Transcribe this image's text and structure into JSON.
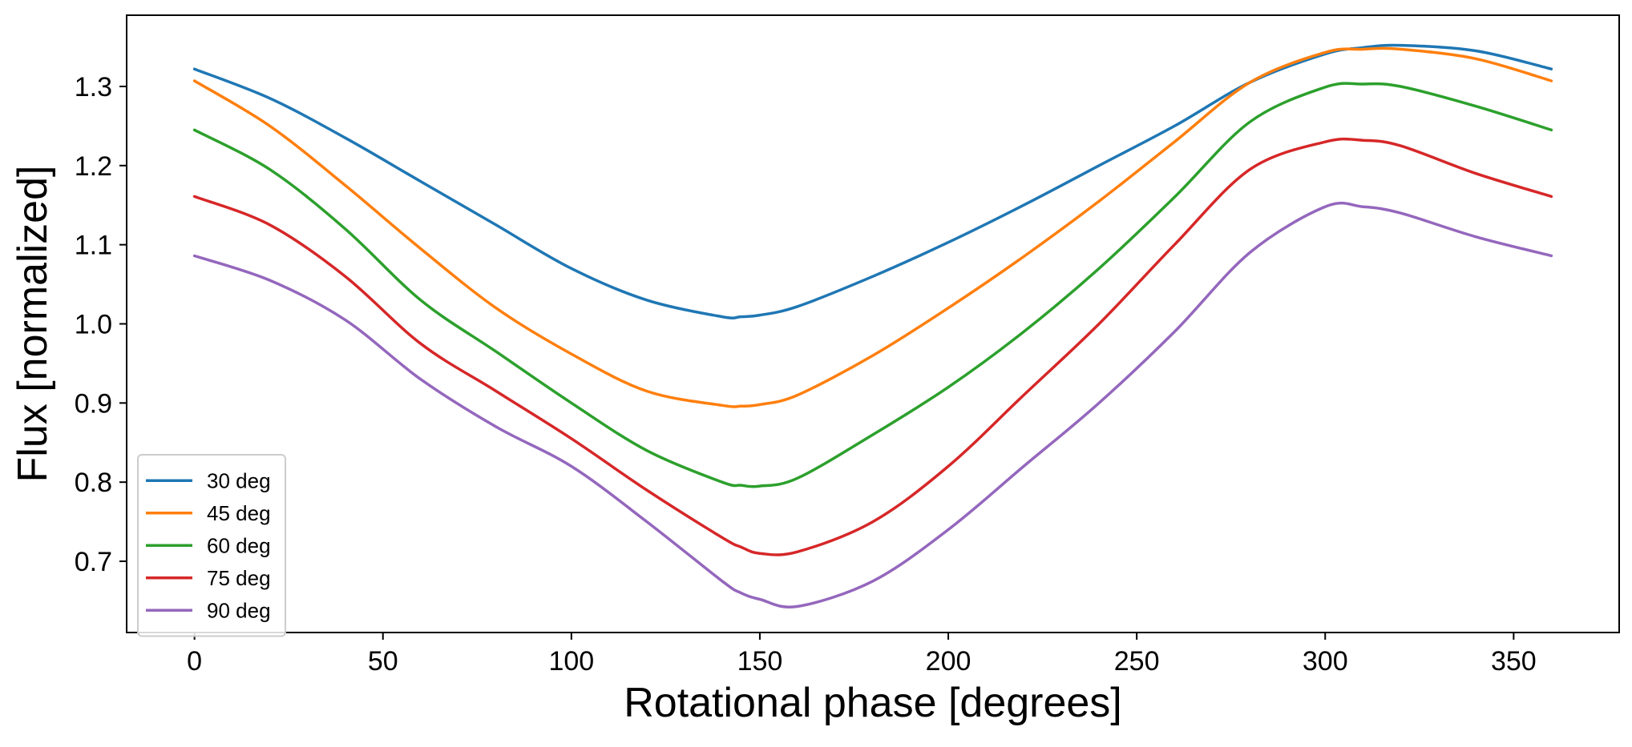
{
  "chart_data": {
    "type": "line",
    "title": "",
    "xlabel": "Rotational phase [degrees]",
    "ylabel": "Flux [normalized]",
    "xlim": [
      -18,
      378
    ],
    "ylim": [
      0.61,
      1.39
    ],
    "xticks": [
      0,
      50,
      100,
      150,
      200,
      250,
      300,
      350
    ],
    "xtick_labels": [
      "0",
      "50",
      "100",
      "150",
      "200",
      "250",
      "300",
      "350"
    ],
    "yticks": [
      0.7,
      0.8,
      0.9,
      1.0,
      1.1,
      1.2,
      1.3
    ],
    "ytick_labels": [
      "0.7",
      "0.8",
      "0.9",
      "1.0",
      "1.1",
      "1.2",
      "1.3"
    ],
    "grid": false,
    "legend_position": "lower-left",
    "x": [
      0,
      20,
      40,
      60,
      80,
      100,
      120,
      140,
      145,
      150,
      160,
      180,
      200,
      220,
      240,
      260,
      280,
      300,
      310,
      320,
      340,
      360
    ],
    "series": [
      {
        "name": "30 deg",
        "color": "#1f77b4",
        "values": [
          1.322,
          1.285,
          1.235,
          1.18,
          1.125,
          1.07,
          1.03,
          1.009,
          1.009,
          1.011,
          1.022,
          1.06,
          1.103,
          1.15,
          1.2,
          1.25,
          1.305,
          1.341,
          1.349,
          1.352,
          1.345,
          1.322
        ]
      },
      {
        "name": "45 deg",
        "color": "#ff7f0e",
        "values": [
          1.307,
          1.25,
          1.175,
          1.095,
          1.02,
          0.962,
          0.915,
          0.897,
          0.896,
          0.898,
          0.91,
          0.96,
          1.02,
          1.085,
          1.155,
          1.23,
          1.305,
          1.343,
          1.347,
          1.347,
          1.335,
          1.307
        ]
      },
      {
        "name": "60 deg",
        "color": "#2ca02c",
        "values": [
          1.245,
          1.195,
          1.12,
          1.03,
          0.965,
          0.9,
          0.84,
          0.8,
          0.796,
          0.795,
          0.805,
          0.86,
          0.92,
          0.99,
          1.07,
          1.16,
          1.255,
          1.299,
          1.303,
          1.3,
          1.275,
          1.245
        ]
      },
      {
        "name": "75 deg",
        "color": "#d62728",
        "values": [
          1.161,
          1.125,
          1.06,
          0.975,
          0.915,
          0.855,
          0.79,
          0.73,
          0.718,
          0.71,
          0.712,
          0.75,
          0.82,
          0.91,
          1.0,
          1.1,
          1.195,
          1.23,
          1.232,
          1.225,
          1.19,
          1.161
        ]
      },
      {
        "name": "90 deg",
        "color": "#9467bd",
        "values": [
          1.086,
          1.055,
          1.005,
          0.93,
          0.87,
          0.82,
          0.75,
          0.675,
          0.66,
          0.652,
          0.643,
          0.675,
          0.74,
          0.82,
          0.9,
          0.99,
          1.09,
          1.148,
          1.148,
          1.14,
          1.11,
          1.086
        ]
      }
    ]
  }
}
